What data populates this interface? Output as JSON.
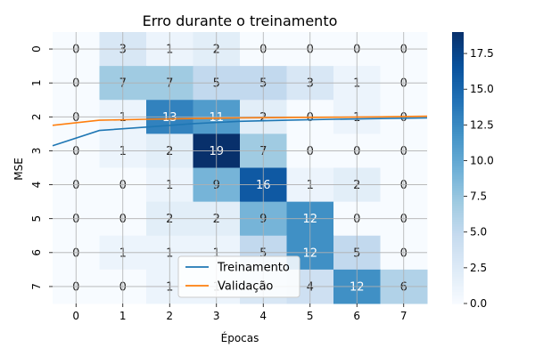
{
  "chart_data": {
    "type": "heatmap",
    "title": "Erro durante o treinamento",
    "xlabel": "Épocas",
    "ylabel": "MSE",
    "x_categories": [
      "0",
      "1",
      "2",
      "3",
      "4",
      "5",
      "6",
      "7"
    ],
    "y_categories": [
      "0",
      "1",
      "2",
      "3",
      "4",
      "5",
      "6",
      "7"
    ],
    "values": [
      [
        0,
        3,
        1,
        2,
        0,
        0,
        0,
        0
      ],
      [
        0,
        7,
        7,
        5,
        5,
        3,
        1,
        0
      ],
      [
        0,
        1,
        13,
        11,
        2,
        0,
        1,
        0
      ],
      [
        0,
        1,
        2,
        19,
        7,
        0,
        0,
        0
      ],
      [
        0,
        0,
        1,
        9,
        16,
        1,
        2,
        0
      ],
      [
        0,
        0,
        2,
        2,
        9,
        12,
        0,
        0
      ],
      [
        0,
        1,
        1,
        1,
        5,
        12,
        5,
        0
      ],
      [
        0,
        0,
        1,
        1,
        3,
        4,
        12,
        6
      ]
    ],
    "colormap": "Blues",
    "vmin": 0,
    "vmax": 19,
    "colorbar_ticks": [
      "0.0",
      "2.5",
      "5.0",
      "7.5",
      "10.0",
      "12.5",
      "15.0",
      "17.5"
    ],
    "colorbar_tick_values": [
      0,
      2.5,
      5,
      7.5,
      10,
      12.5,
      15,
      17.5
    ],
    "grid": true,
    "legend_position": "lower-center",
    "overlay_series": [
      {
        "name": "Treinamento",
        "color": "#1f77b4",
        "x": [
          -0.5,
          0.5,
          1.5,
          2.5,
          3.5,
          4.5,
          5.5,
          6.5,
          7.5
        ],
        "y": [
          2.85,
          2.4,
          2.3,
          2.2,
          2.13,
          2.1,
          2.07,
          2.05,
          2.03
        ]
      },
      {
        "name": "Validação",
        "color": "#ff7f0e",
        "x": [
          -0.5,
          0.5,
          1.5,
          2.5,
          3.5,
          4.5,
          5.5,
          6.5,
          7.5
        ],
        "y": [
          2.25,
          2.1,
          2.07,
          2.05,
          2.03,
          2.02,
          2.01,
          2.0,
          1.98
        ]
      }
    ]
  }
}
